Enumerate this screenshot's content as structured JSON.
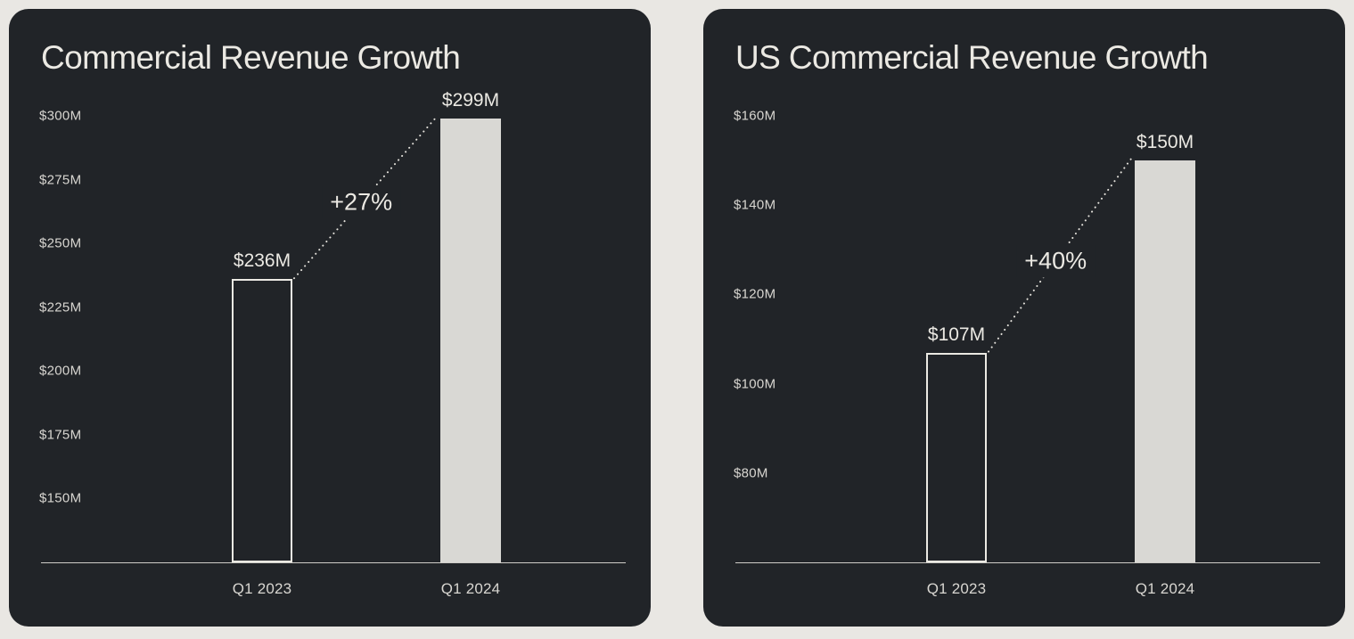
{
  "page_background": "#e9e7e3",
  "chart_data": [
    {
      "type": "bar",
      "title": "Commercial Revenue Growth",
      "categories": [
        "Q1 2023",
        "Q1 2024"
      ],
      "values": [
        236,
        299
      ],
      "value_labels": [
        "$236M",
        "$299M"
      ],
      "growth_annotation": "+27%",
      "unit": "USD millions",
      "ytick_values": [
        300,
        275,
        250,
        225,
        200,
        175,
        150
      ],
      "ytick_labels": [
        "$300M",
        "$275M",
        "$250M",
        "$225M",
        "$200M",
        "$175M",
        "$150M"
      ],
      "axis_min": 125,
      "axis_max": 300,
      "grid": "off",
      "legend": "none",
      "bar_styles": [
        "outline",
        "filled"
      ],
      "colors": {
        "card_bg": "#212428",
        "text": "#ebe9e3",
        "muted_text": "#d8d6d1",
        "bar_fill": "#d9d8d4",
        "bar_outline": "#ebe9e3",
        "axis_line": "#cfcdc8",
        "connector": "#e3e1db"
      }
    },
    {
      "type": "bar",
      "title": "US Commercial Revenue Growth",
      "categories": [
        "Q1 2023",
        "Q1 2024"
      ],
      "values": [
        107,
        150
      ],
      "value_labels": [
        "$107M",
        "$150M"
      ],
      "growth_annotation": "+40%",
      "unit": "USD millions",
      "ytick_values": [
        160,
        140,
        120,
        100,
        80
      ],
      "ytick_labels": [
        "$160M",
        "$140M",
        "$120M",
        "$100M",
        "$80M"
      ],
      "axis_min": 60,
      "axis_max": 160,
      "grid": "off",
      "legend": "none",
      "bar_styles": [
        "outline",
        "filled"
      ],
      "colors": {
        "card_bg": "#212428",
        "text": "#ebe9e3",
        "muted_text": "#d8d6d1",
        "bar_fill": "#d9d8d4",
        "bar_outline": "#ebe9e3",
        "axis_line": "#cfcdc8",
        "connector": "#e3e1db"
      }
    }
  ]
}
